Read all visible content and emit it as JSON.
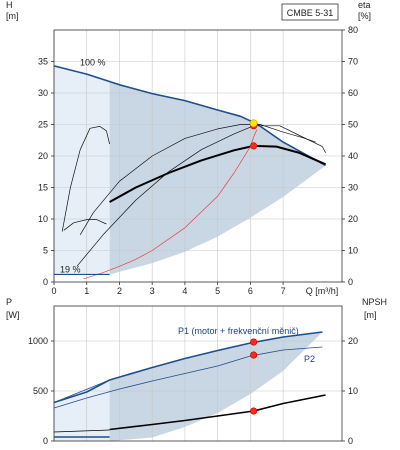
{
  "chart_data": [
    {
      "type": "line",
      "title": "CMBE 5-31",
      "xlabel": "Q [m³/h]",
      "ylabel": "H\n[m]",
      "y2label": "eta\n[%]",
      "xlim": [
        0,
        8.8
      ],
      "ylim": [
        0,
        40
      ],
      "y2lim": [
        0,
        80
      ],
      "x_ticks": [
        "0",
        "1",
        "2",
        "3",
        "4",
        "5",
        "6",
        "7"
      ],
      "y_ticks": [
        "0",
        "5",
        "10",
        "15",
        "20",
        "25",
        "30",
        "35"
      ],
      "y2_ticks": [
        "0",
        "10",
        "20",
        "30",
        "40",
        "50",
        "60",
        "70",
        "80"
      ],
      "grid": true,
      "annotations": [
        "100 %",
        "19 %"
      ],
      "colors": {
        "max_curve": "#1f4e8c",
        "duty_curve": "#000000",
        "system_curve": "#e8403a",
        "region_fill": "#c9d6e4",
        "operating_point": "#ff2a1a",
        "best_point": "#ffe600"
      },
      "regions": {
        "light": {
          "top": [
            [
              0,
              34.3
            ],
            [
              1.0,
              33.0
            ],
            [
              1.7,
              31.7
            ]
          ],
          "bottom": [
            [
              0,
              1.2
            ],
            [
              1.7,
              1.2
            ]
          ]
        },
        "dark": {
          "top": [
            [
              1.7,
              31.7
            ],
            [
              3,
              29.9
            ],
            [
              4,
              28.8
            ],
            [
              5,
              27.3
            ],
            [
              5.7,
              26.3
            ],
            [
              6.2,
              25.1
            ],
            [
              7,
              22.2
            ],
            [
              8.3,
              18.5
            ]
          ],
          "bottom": [
            [
              1.7,
              1.2
            ],
            [
              3,
              3.0
            ],
            [
              4,
              4.8
            ],
            [
              5,
              7.2
            ],
            [
              6,
              10.2
            ],
            [
              7,
              13.5
            ],
            [
              8.3,
              18.5
            ]
          ]
        }
      },
      "series": [
        {
          "name": "100 %",
          "role": "max",
          "points": [
            [
              0,
              34.3
            ],
            [
              1,
              33.0
            ],
            [
              2,
              31.3
            ],
            [
              3,
              29.9
            ],
            [
              4,
              28.8
            ],
            [
              5,
              27.3
            ],
            [
              5.7,
              26.3
            ],
            [
              6.2,
              25.1
            ],
            [
              7,
              22.2
            ],
            [
              8.3,
              18.5
            ]
          ]
        },
        {
          "role": "duty",
          "points": [
            [
              1.7,
              12.7
            ],
            [
              2.5,
              15.0
            ],
            [
              3.5,
              17.3
            ],
            [
              4.5,
              19.3
            ],
            [
              5.5,
              20.9
            ],
            [
              6.1,
              21.6
            ],
            [
              6.8,
              21.5
            ],
            [
              7.5,
              20.5
            ],
            [
              8.2,
              18.9
            ],
            [
              8.3,
              18.7
            ]
          ]
        },
        {
          "role": "eta_max",
          "points": [
            [
              0.7,
              5
            ],
            [
              1.5,
              15
            ],
            [
              2.5,
              26
            ],
            [
              3.5,
              35
            ],
            [
              4.5,
              42
            ],
            [
              5.5,
              47
            ],
            [
              6.1,
              49.6
            ],
            [
              6.9,
              49.6
            ],
            [
              7.5,
              46.5
            ],
            [
              8.2,
              43
            ],
            [
              8.3,
              41
            ]
          ]
        },
        {
          "role": "eta_low",
          "points": [
            [
              0.8,
              15
            ],
            [
              1.2,
              22
            ],
            [
              2.0,
              32
            ],
            [
              3.0,
              40
            ],
            [
              4.0,
              45.6
            ],
            [
              5.0,
              48.6
            ],
            [
              5.7,
              50
            ],
            [
              6.3,
              50
            ],
            [
              7.0,
              47.6
            ],
            [
              7.6,
              45.8
            ],
            [
              8.0,
              44.4
            ]
          ]
        },
        {
          "role": "eta_19",
          "points": [
            [
              0.25,
              16
            ],
            [
              0.5,
              30
            ],
            [
              0.8,
              42
            ],
            [
              1.1,
              48.8
            ],
            [
              1.4,
              49.4
            ],
            [
              1.6,
              48
            ],
            [
              1.7,
              43.8
            ]
          ]
        },
        {
          "role": "curve_19",
          "points": [
            [
              0.3,
              8.2
            ],
            [
              0.6,
              9.4
            ],
            [
              1.0,
              9.9
            ],
            [
              1.3,
              9.9
            ],
            [
              1.6,
              9.2
            ]
          ]
        },
        {
          "role": "system",
          "points": [
            [
              0.9,
              0.5
            ],
            [
              1.5,
              1.5
            ],
            [
              2.0,
              2.5
            ],
            [
              2.5,
              3.6
            ],
            [
              3.0,
              5.0
            ],
            [
              4.0,
              8.6
            ],
            [
              5.0,
              13.6
            ],
            [
              5.5,
              17.3
            ],
            [
              6.0,
              21.5
            ],
            [
              6.1,
              23.0
            ],
            [
              6.2,
              24.2
            ]
          ]
        }
      ],
      "markers": [
        {
          "x": 6.1,
          "y": 21.6,
          "color": "red"
        },
        {
          "x": 6.1,
          "y": 24.8,
          "color": "red"
        },
        {
          "x": 6.1,
          "y": 25.2,
          "color": "yellow"
        }
      ]
    },
    {
      "type": "line",
      "ylabel": "P\n[W]",
      "y2label": "NPSH\n[m]",
      "xlim": [
        0,
        8.8
      ],
      "ylim": [
        0,
        1350
      ],
      "y2lim": [
        0,
        27
      ],
      "y_ticks": [
        "0",
        "500",
        "1000"
      ],
      "y2_ticks": [
        "0",
        "10",
        "20"
      ],
      "grid": true,
      "annotations": [
        "P1 (motor + frekvenční měnič)",
        "P2"
      ],
      "regions": {
        "light": {
          "top": [
            [
              0,
              385
            ],
            [
              1.7,
              610
            ]
          ],
          "bottom": [
            [
              0,
              0
            ],
            [
              1.7,
              0
            ]
          ]
        },
        "dark": {
          "top": [
            [
              1.7,
              610
            ],
            [
              3,
              735
            ],
            [
              4,
              825
            ],
            [
              5,
              905
            ],
            [
              6,
              980
            ],
            [
              7,
              1040
            ],
            [
              8.2,
              1090
            ],
            [
              8.3,
              1095
            ]
          ],
          "bottom": [
            [
              1.7,
              0
            ],
            [
              3,
              35
            ],
            [
              4,
              140
            ],
            [
              5,
              280
            ],
            [
              6,
              470
            ],
            [
              7,
              700
            ],
            [
              8.2,
              1090
            ]
          ]
        }
      },
      "series": [
        {
          "name": "P1 (motor + frekvenční měnič)",
          "role": "max",
          "points": [
            [
              0,
              385
            ],
            [
              1,
              490
            ],
            [
              1.7,
              610
            ],
            [
              3,
              735
            ],
            [
              4,
              825
            ],
            [
              5,
              905
            ],
            [
              6,
              980
            ],
            [
              7,
              1040
            ],
            [
              8.2,
              1090
            ]
          ]
        },
        {
          "name": "P2",
          "role": "max_thin",
          "points": [
            [
              0,
              330
            ],
            [
              1,
              430
            ],
            [
              2,
              520
            ],
            [
              3,
              600
            ],
            [
              4,
              675
            ],
            [
              5,
              750
            ],
            [
              6,
              850
            ],
            [
              7,
              910
            ],
            [
              8.2,
              940
            ]
          ]
        },
        {
          "role": "duty",
          "points": [
            [
              1.7,
              115
            ],
            [
              3,
              165
            ],
            [
              4,
              205
            ],
            [
              5,
              250
            ],
            [
              6.1,
              300
            ],
            [
              7,
              375
            ],
            [
              8.3,
              460
            ]
          ]
        },
        {
          "role": "duty_thin",
          "points": [
            [
              0,
              90
            ],
            [
              1.7,
              110
            ]
          ]
        },
        {
          "role": "npsh",
          "points": [
            [
              0,
              0.8
            ],
            [
              1.7,
              0.8
            ]
          ]
        }
      ],
      "markers": [
        {
          "x": 6.1,
          "y": 990,
          "color": "red"
        },
        {
          "x": 6.1,
          "y": 860,
          "color": "red"
        },
        {
          "x": 6.1,
          "y": 300,
          "color": "red"
        }
      ]
    }
  ]
}
